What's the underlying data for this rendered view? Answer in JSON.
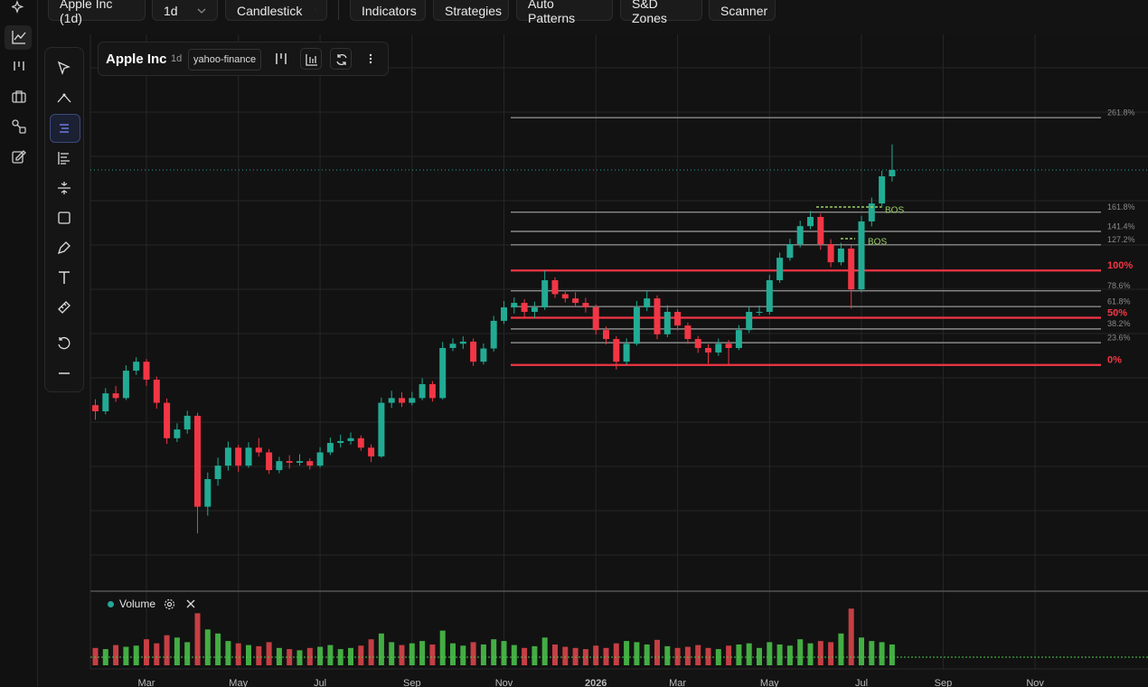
{
  "toolbar": {
    "symbol": "Apple Inc (1d)",
    "interval": "1d",
    "chart_style": "Candlestick",
    "buttons": [
      "Indicators",
      "Strategies",
      "Auto Patterns",
      "S&D Zones",
      "Scanner"
    ]
  },
  "legend": {
    "name": "Apple Inc",
    "interval": "1d",
    "source": "yahoo-finance"
  },
  "chart_data": {
    "type": "candlestick",
    "categories": [
      null,
      null,
      null,
      null,
      null,
      "Mar",
      null,
      null,
      null,
      null,
      null,
      null,
      null,
      null,
      "May",
      null,
      null,
      null,
      null,
      null,
      null,
      null,
      "Jul",
      null,
      null,
      null,
      null,
      null,
      null,
      null,
      null,
      "Sep",
      null,
      null,
      null,
      null,
      null,
      null,
      null,
      null,
      "Nov",
      null,
      null,
      null,
      null,
      null,
      null,
      null,
      null,
      "2026",
      null,
      null,
      null,
      null,
      null,
      null,
      null,
      "Mar",
      null,
      null,
      null,
      null,
      null,
      null,
      null,
      null,
      "May",
      null,
      null,
      null,
      null,
      null,
      null,
      null,
      null,
      "Jul",
      null,
      null,
      null,
      null,
      null,
      null,
      null,
      "Sep",
      null,
      null,
      null,
      null,
      null,
      null,
      null,
      null,
      "Nov"
    ],
    "ohlc": [
      [
        228,
        230.5,
        221.8,
        225.4
      ],
      [
        225.4,
        235.2,
        224.1,
        233
      ],
      [
        233,
        236.1,
        229.4,
        231
      ],
      [
        231,
        244.9,
        230.2,
        242.6
      ],
      [
        242.6,
        248.3,
        240.8,
        246.4
      ],
      [
        246.4,
        247.5,
        236.2,
        238.8
      ],
      [
        238.8,
        240.1,
        226.5,
        229
      ],
      [
        229,
        230.8,
        211.6,
        214
      ],
      [
        214,
        220.3,
        212.4,
        217.7
      ],
      [
        217.7,
        225.6,
        215.9,
        223.5
      ],
      [
        223.5,
        224.8,
        173.7,
        185
      ],
      [
        185,
        199.5,
        181.2,
        196.7
      ],
      [
        196.7,
        205.8,
        193.9,
        202.4
      ],
      [
        202.4,
        212.6,
        200.3,
        210
      ],
      [
        210,
        211.2,
        199.8,
        202.4
      ],
      [
        202.4,
        212.3,
        201.5,
        210
      ],
      [
        210,
        214.1,
        206.2,
        208
      ],
      [
        208,
        209.4,
        198.9,
        200.5
      ],
      [
        200.5,
        206.1,
        199.2,
        204.3
      ],
      [
        204.3,
        206.8,
        201.1,
        203.6
      ],
      [
        203.6,
        207.2,
        202.4,
        204.3
      ],
      [
        204.3,
        205.5,
        200.7,
        202.4
      ],
      [
        202.4,
        210.2,
        201.6,
        208
      ],
      [
        208,
        214.3,
        206.9,
        212
      ],
      [
        212,
        215.5,
        210.1,
        212.8
      ],
      [
        212.8,
        216.4,
        211.3,
        214
      ],
      [
        214,
        215.2,
        208.7,
        210
      ],
      [
        210,
        211.4,
        203.9,
        206.3
      ],
      [
        206.3,
        231.2,
        205.7,
        229
      ],
      [
        229,
        234.1,
        226.8,
        231
      ],
      [
        231,
        233.5,
        227.2,
        229
      ],
      [
        229,
        233.6,
        227.9,
        231
      ],
      [
        231,
        239.4,
        230.1,
        236.9
      ],
      [
        236.9,
        238.2,
        229.5,
        231
      ],
      [
        231,
        254.8,
        230.4,
        252.2
      ],
      [
        252.2,
        256.3,
        250.9,
        254
      ],
      [
        254,
        257.1,
        251.8,
        254.9
      ],
      [
        254.9,
        256.2,
        244.6,
        246.4
      ],
      [
        246.4,
        254.1,
        245.2,
        252
      ],
      [
        252,
        265.8,
        250.7,
        263.7
      ],
      [
        263.7,
        272.1,
        262.4,
        269.4
      ],
      [
        269.4,
        273.6,
        266.8,
        271.3
      ],
      [
        271.3,
        272.9,
        265.1,
        267.5
      ],
      [
        267.5,
        271.8,
        264.9,
        269.4
      ],
      [
        269.4,
        285,
        268.3,
        280.9
      ],
      [
        280.9,
        282.1,
        273.4,
        275
      ],
      [
        275,
        276.7,
        271.5,
        273.2
      ],
      [
        273.2,
        275.8,
        269.6,
        271.3
      ],
      [
        271.3,
        273.4,
        267.2,
        269.4
      ],
      [
        269.4,
        270.6,
        257.9,
        259.8
      ],
      [
        259.8,
        261.3,
        253.7,
        256
      ],
      [
        256,
        257.2,
        243.1,
        246.4
      ],
      [
        246.4,
        256.3,
        245,
        254
      ],
      [
        254,
        272.1,
        253.2,
        269.4
      ],
      [
        269.4,
        276.4,
        267.8,
        273.2
      ],
      [
        273.2,
        274.5,
        255.9,
        258
      ],
      [
        258,
        270.3,
        256.8,
        267.5
      ],
      [
        267.5,
        268.7,
        259.6,
        261.7
      ],
      [
        261.7,
        262.9,
        253.9,
        256
      ],
      [
        256,
        257.3,
        250.1,
        252.2
      ],
      [
        252.2,
        253.8,
        245.6,
        250.3
      ],
      [
        250.3,
        256.2,
        248.9,
        254
      ],
      [
        254,
        255.6,
        245.2,
        252.2
      ],
      [
        252.2,
        261.9,
        251.3,
        259.8
      ],
      [
        259.8,
        269.7,
        258.6,
        267.5
      ],
      [
        267.5,
        270.2,
        265.9,
        267.5
      ],
      [
        267.5,
        283.1,
        266.4,
        280.9
      ],
      [
        280.9,
        292.6,
        279.8,
        290.4
      ],
      [
        290.4,
        298.4,
        289.1,
        296.2
      ],
      [
        296.2,
        306.1,
        294.8,
        303.8
      ],
      [
        303.8,
        310.2,
        302.5,
        307.7
      ],
      [
        307.7,
        309.1,
        293.8,
        296.2
      ],
      [
        296.2,
        298.3,
        286.4,
        288.5
      ],
      [
        288.5,
        296.7,
        287.2,
        294.3
      ],
      [
        294.3,
        295.6,
        268.9,
        277
      ],
      [
        277,
        308.1,
        275.8,
        305.8
      ],
      [
        305.8,
        315.9,
        303.7,
        313.4
      ],
      [
        313.4,
        327.2,
        311.6,
        324.9
      ],
      [
        324.9,
        338.4,
        322.7,
        327.6
      ],
      null,
      null,
      null,
      null,
      null,
      null,
      null,
      null,
      null,
      null,
      null,
      null,
      null,
      null
    ],
    "ylim": [
      150,
      385
    ],
    "up_color": "#22ab94",
    "down_color": "#f23645",
    "last_price_line": true,
    "last_price_color": "#26a69a",
    "fib_anchor": [
      245,
      285
    ],
    "fib_major_color": "#f23645",
    "fib_minor_color": "#8a8a8a",
    "fib_levels": [
      {
        "value": 0,
        "label": "0%",
        "major": true
      },
      {
        "value": 23.6,
        "label": "23.6%"
      },
      {
        "value": 38.2,
        "label": "38.2%"
      },
      {
        "value": 50,
        "label": "50%",
        "major": true
      },
      {
        "value": 61.8,
        "label": "61.8%"
      },
      {
        "value": 78.6,
        "label": "78.6%"
      },
      {
        "value": 100,
        "label": "100%",
        "major": true
      },
      {
        "value": 127.2,
        "label": "127.2%"
      },
      {
        "value": 141.4,
        "label": "141.4%"
      },
      {
        "value": 161.8,
        "label": "161.8%"
      },
      {
        "value": 261.8,
        "label": "261.8%"
      }
    ],
    "annotation_color": "#9ccc65",
    "annotations": [
      {
        "text": "BOS",
        "value": 311.9
      },
      {
        "text": "BOS",
        "value": 298.5
      }
    ],
    "volume": {
      "label": "Volume",
      "ylim": [
        0,
        100
      ],
      "up_color": "#4cc94c",
      "down_color": "#e5484d",
      "values": [
        30,
        28,
        35,
        32,
        34,
        45,
        38,
        52,
        48,
        40,
        90,
        62,
        55,
        42,
        38,
        35,
        33,
        40,
        30,
        28,
        26,
        30,
        32,
        35,
        28,
        30,
        34,
        45,
        55,
        40,
        35,
        38,
        42,
        36,
        60,
        38,
        34,
        40,
        36,
        45,
        42,
        35,
        30,
        33,
        48,
        36,
        32,
        30,
        28,
        34,
        30,
        38,
        42,
        40,
        36,
        44,
        33,
        30,
        32,
        35,
        30,
        28,
        34,
        36,
        38,
        30,
        40,
        36,
        34,
        45,
        38,
        42,
        40,
        55,
        98,
        48,
        42,
        40,
        36,
        null,
        null,
        null,
        null,
        null,
        null,
        null,
        null,
        null,
        null,
        null,
        null,
        null,
        null
      ]
    }
  }
}
